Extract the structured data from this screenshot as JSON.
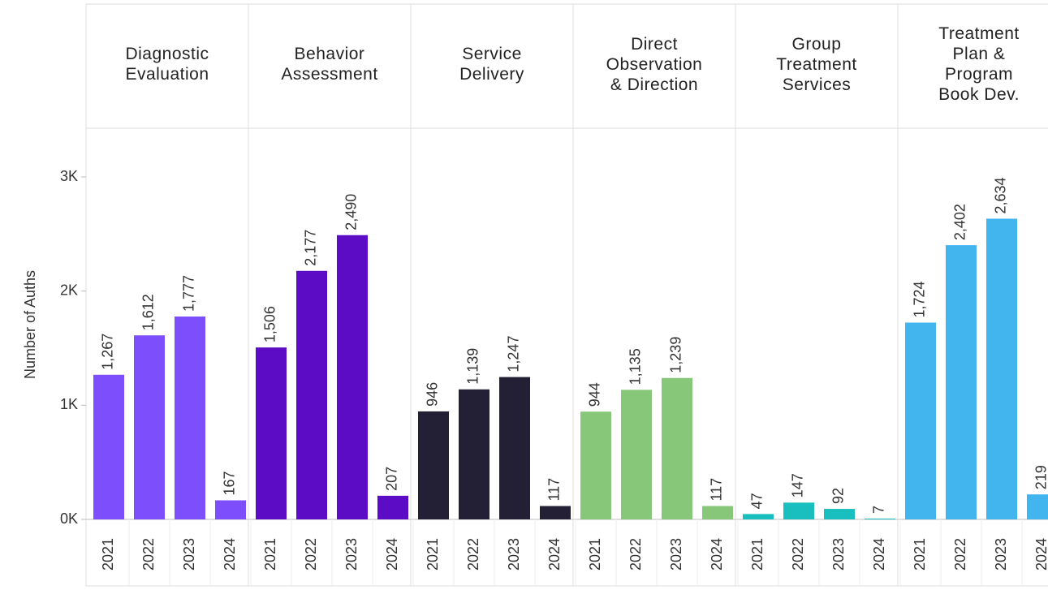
{
  "chart_data": {
    "type": "bar",
    "y_axis_label": "Number of Auths",
    "categories": [
      "2021",
      "2022",
      "2023",
      "2024"
    ],
    "ylim": [
      0,
      3000
    ],
    "yticks": [
      {
        "value": 0,
        "label": "0K"
      },
      {
        "value": 1000,
        "label": "1K"
      },
      {
        "value": 2000,
        "label": "2K"
      },
      {
        "value": 3000,
        "label": "3K"
      }
    ],
    "panels": [
      {
        "name": "Diagnostic\nEvaluation",
        "color": "#7c4efc",
        "values": [
          1267,
          1612,
          1777,
          167
        ],
        "value_labels": [
          "1,267",
          "1,612",
          "1,777",
          "167"
        ]
      },
      {
        "name": "Behavior\nAssessment",
        "color": "#5b0cc4",
        "values": [
          1506,
          2177,
          2490,
          207
        ],
        "value_labels": [
          "1,506",
          "2,177",
          "2,490",
          "207"
        ]
      },
      {
        "name": "Service\nDelivery",
        "color": "#231f35",
        "values": [
          946,
          1139,
          1247,
          117
        ],
        "value_labels": [
          "946",
          "1,139",
          "1,247",
          "117"
        ]
      },
      {
        "name": "Direct\nObservation\n& Direction",
        "color": "#86c77a",
        "values": [
          944,
          1135,
          1239,
          117
        ],
        "value_labels": [
          "944",
          "1,135",
          "1,239",
          "117"
        ]
      },
      {
        "name": "Group\nTreatment\nServices",
        "color": "#19bfbf",
        "values": [
          47,
          147,
          92,
          7
        ],
        "value_labels": [
          "47",
          "147",
          "92",
          "7"
        ]
      },
      {
        "name": "Treatment\nPlan &\nProgram\nBook Dev.",
        "color": "#42b4ee",
        "values": [
          1724,
          2402,
          2634,
          219
        ],
        "value_labels": [
          "1,724",
          "2,402",
          "2,634",
          "219"
        ]
      }
    ]
  }
}
